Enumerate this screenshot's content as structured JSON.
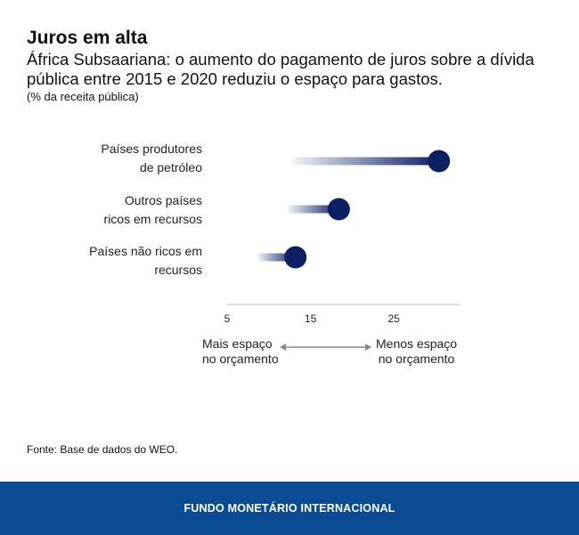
{
  "title": "Juros em alta",
  "subtitle": "África Subsaariana: o aumento do pagamento de juros sobre a dívida pública entre 2015 e 2020 reduziu o espaço para gastos.",
  "unit": "(% da receita pública)",
  "chart_data": {
    "type": "dumbbell",
    "categories": [
      "Países produtores de petróleo",
      "Outros países ricos em recursos",
      "Países não ricos em recursos"
    ],
    "series": [
      {
        "values_start": [
          12.8,
          12.3,
          8.7
        ],
        "values_end": [
          30.4,
          18.4,
          13.2
        ]
      }
    ],
    "xlim": [
      5,
      33
    ],
    "xticks": [
      5,
      15,
      25
    ],
    "grid": false,
    "color": "#0b1f63",
    "annotations": {
      "left": "Mais espaço no orçamento",
      "right": "Menos espaço no orçamento"
    }
  },
  "cat_lines": [
    [
      "Países produtores",
      "de petróleo"
    ],
    [
      "Outros países",
      "ricos em recursos"
    ],
    [
      "Países não ricos em",
      "recursos"
    ]
  ],
  "arrow_left": [
    "Mais espaço",
    "no orçamento"
  ],
  "arrow_right": [
    "Menos espaço",
    "no orçamento"
  ],
  "source": "Fonte: Base de dados do WEO.",
  "footer": "FUNDO MONETÁRIO INTERNACIONAL"
}
